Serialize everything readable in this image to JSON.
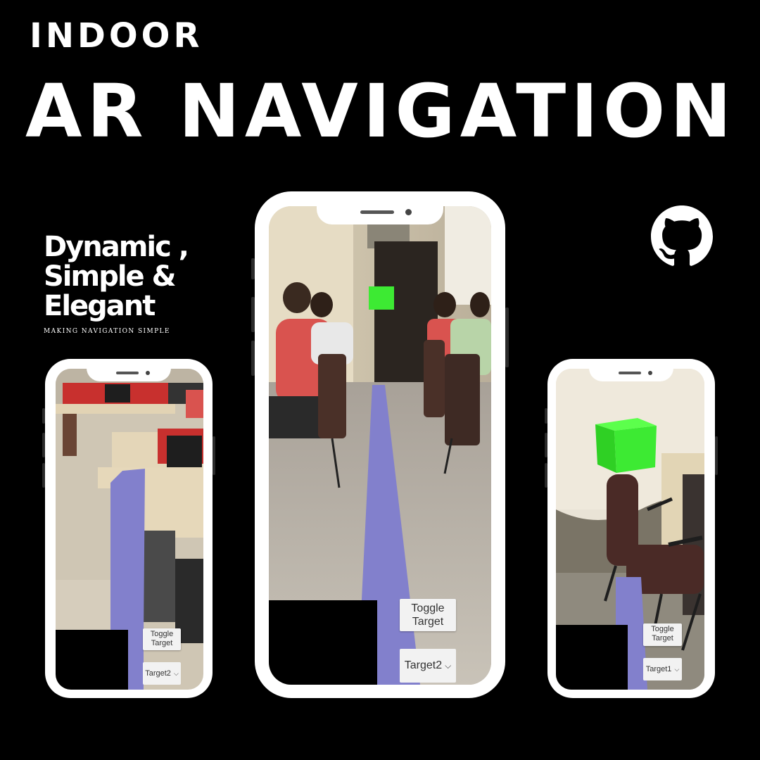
{
  "header": {
    "line1": "INDOOR",
    "line2": "AR NAVIGATION"
  },
  "tagline": {
    "line1": "Dynamic ,",
    "line2": "Simple &",
    "line3": "Elegant",
    "sub": "MAKING NAVIGATION SIMPLE"
  },
  "icons": {
    "github": "github-icon"
  },
  "colors": {
    "background": "#000000",
    "path": "#8280cc",
    "cube": "#3dea33",
    "phone_frame": "#ffffff"
  },
  "phones": {
    "left": {
      "toggle_label": "Toggle Target",
      "target_value": "Target2"
    },
    "center": {
      "toggle_label": "Toggle Target",
      "target_value": "Target2"
    },
    "right": {
      "toggle_label": "Toggle Target",
      "target_value": "Target1"
    }
  }
}
